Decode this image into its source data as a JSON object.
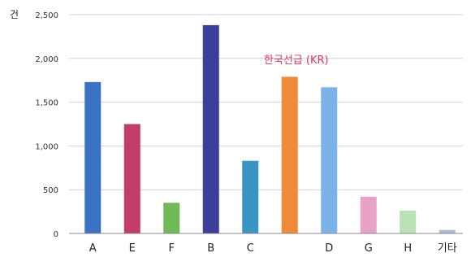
{
  "chart_data": {
    "type": "bar",
    "y_unit_label": "건",
    "categories": [
      "A",
      "E",
      "F",
      "B",
      "C",
      "",
      "D",
      "G",
      "H",
      "기타"
    ],
    "values": [
      1730,
      1250,
      350,
      2380,
      830,
      1790,
      1670,
      420,
      260,
      40
    ],
    "bar_colors": [
      "#3a72c4",
      "#c43d6a",
      "#6fb957",
      "#3b3f99",
      "#3a95c2",
      "#f08a3a",
      "#7ab3ea",
      "#e7a2c6",
      "#b8e1b4",
      "#a9bedb"
    ],
    "y_ticks": [
      "0",
      "500",
      "1,000",
      "1,500",
      "2,000",
      "2,500"
    ],
    "ylim": [
      0,
      2500
    ],
    "grid": true,
    "annotation": "한국선급 (KR)",
    "annotation_bar_index": 5
  }
}
